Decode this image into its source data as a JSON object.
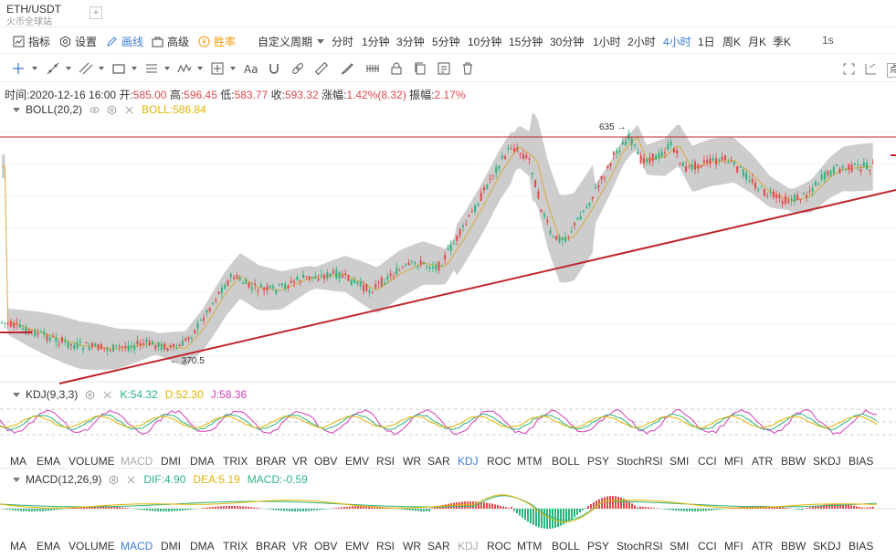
{
  "title": {
    "pair": "ETH/USDT",
    "exchange": "火币全球站",
    "add": "+"
  },
  "toolbar": {
    "indicators": "指标",
    "settings": "设置",
    "draw": "画线",
    "advanced": "高级",
    "winrate": "胜率",
    "custom_period": "自定义周期",
    "periods": [
      "分时",
      "1分钟",
      "3分钟",
      "5分钟",
      "10分钟",
      "15分钟",
      "30分钟",
      "1小时",
      "2小时",
      "4小时",
      "1日",
      "周K",
      "月K",
      "季K"
    ],
    "active_period": "4小时",
    "refresh": "1s",
    "extra": "点"
  },
  "info": {
    "time_label": "时间:",
    "time": "2020-12-16 16:00",
    "open_label": "开:",
    "open": "585.00",
    "high_label": "高:",
    "high": "596.45",
    "low_label": "低:",
    "low": "583.77",
    "close_label": "收:",
    "close": "593.32",
    "chg_label": "涨幅:",
    "chg": "1.42%(8.32)",
    "amp_label": "振幅:",
    "amp": "2.17%"
  },
  "boll": {
    "name": "BOLL(20,2)",
    "value": "BOLL:586.84"
  },
  "kdj": {
    "name": "KDJ(9,3,3)",
    "k": "K:54.32",
    "d": "D:52.30",
    "j": "J:58.36"
  },
  "macd": {
    "name": "MACD(12,26,9)",
    "dif": "DIF:4.90",
    "dea": "DEA:5.19",
    "macd": "MACD:-0.59"
  },
  "annotations": {
    "high": "635",
    "low": "370.5"
  },
  "indicator_tabs": [
    "MA",
    "EMA",
    "VOLUME",
    "MACD",
    "DMI",
    "DMA",
    "TRIX",
    "BRAR",
    "VR",
    "OBV",
    "EMV",
    "RSI",
    "WR",
    "SAR",
    "KDJ",
    "ROC",
    "MTM",
    "BOLL",
    "PSY",
    "StochRSI",
    "SMI",
    "CCI",
    "MFI",
    "ATR",
    "BBW",
    "SKDJ",
    "BIAS"
  ],
  "colors": {
    "up": "#e0494a",
    "down": "#2eb37c",
    "accent": "#3a7bd5",
    "band": "#c8c8c8",
    "trend": "#c0262c"
  }
}
